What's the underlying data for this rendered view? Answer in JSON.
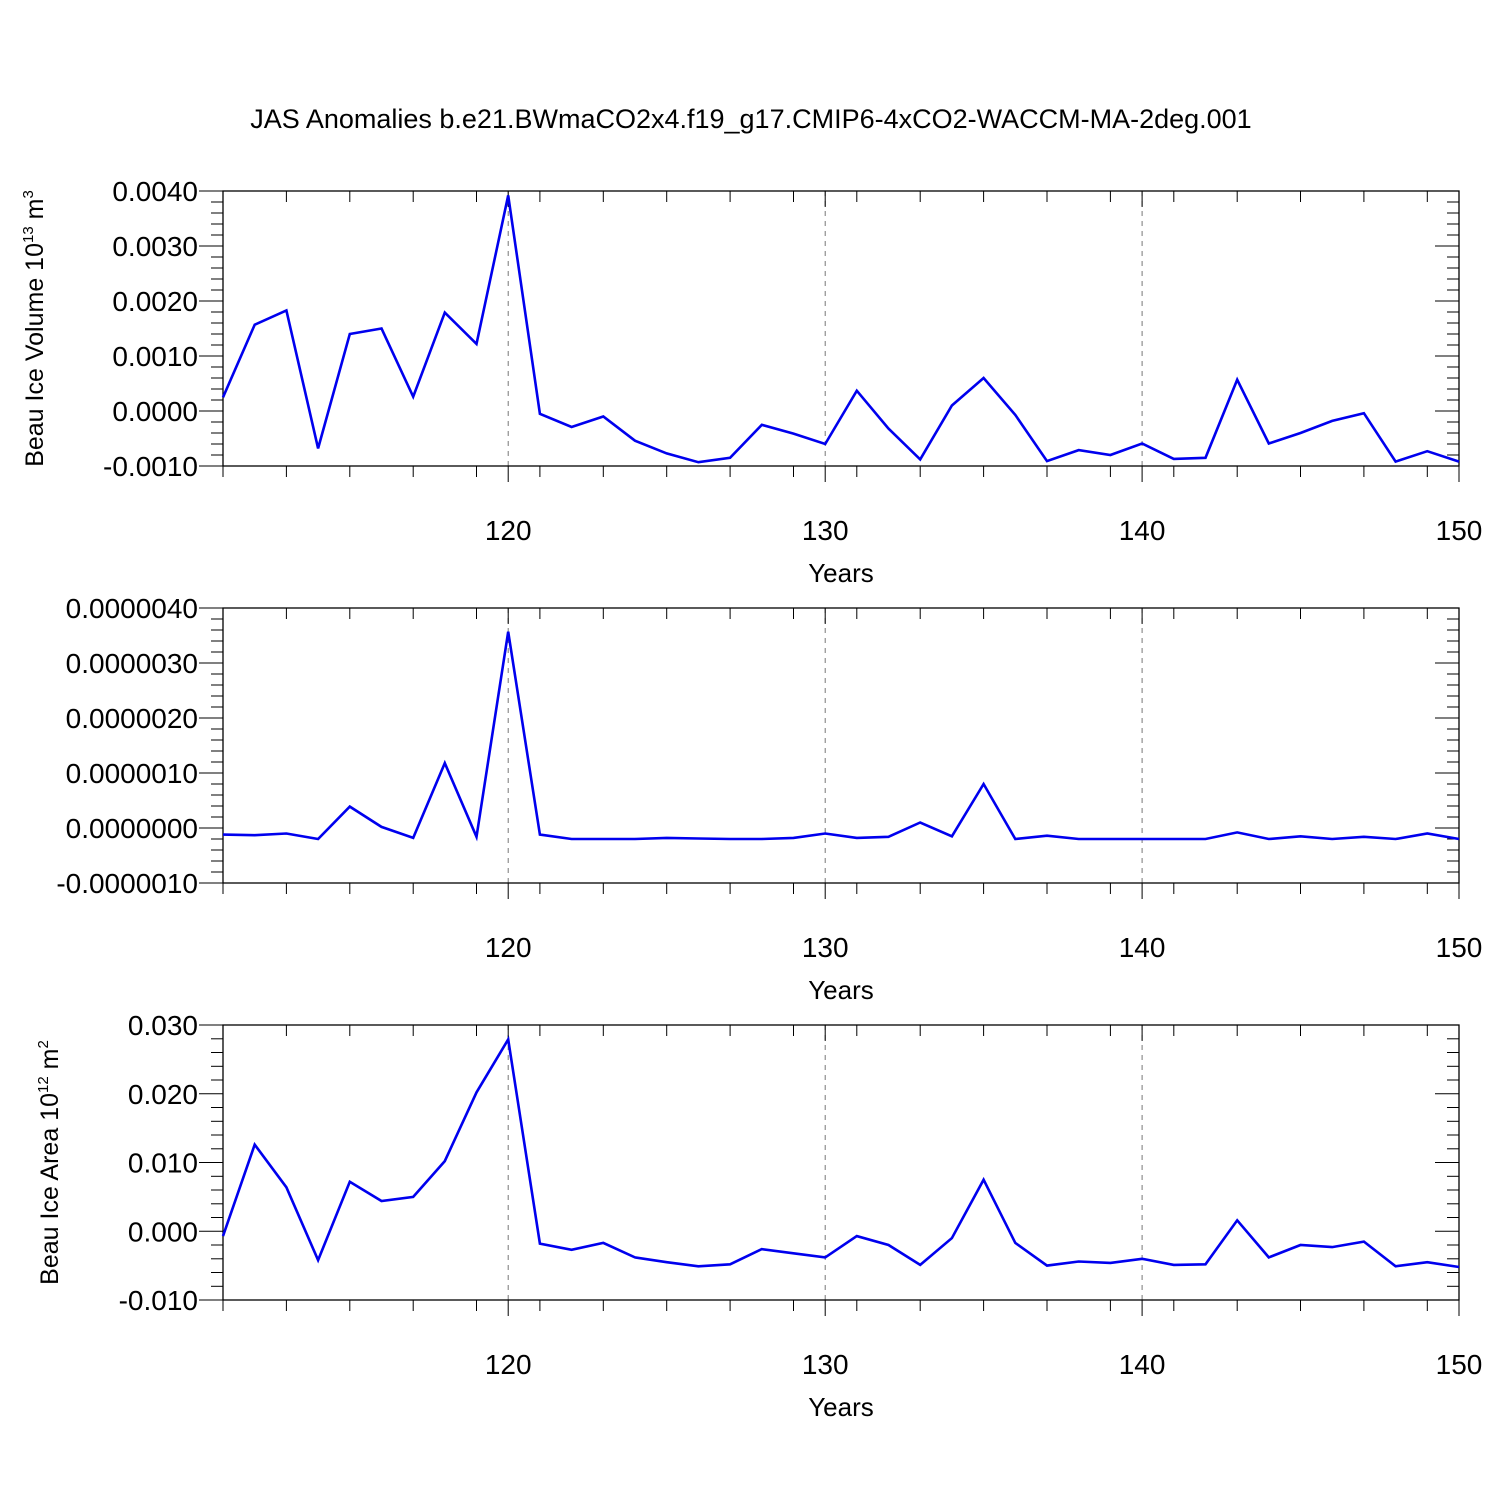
{
  "figure": {
    "title": "JAS Anomalies b.e21.BWmaCO2x4.f19_g17.CMIP6-4xCO2-WACCM-MA-2deg.001"
  },
  "chart_data": [
    {
      "type": "line",
      "ylabel": {
        "text": "Beau Ice Volume 10",
        "sup": "13",
        "unit": " m",
        "unit_sup": "3"
      },
      "xlabel": "Years",
      "xlim": [
        111,
        150
      ],
      "ylim": [
        -0.001,
        0.004
      ],
      "yticks": [
        {
          "value": -0.001,
          "label": "-0.0010"
        },
        {
          "value": 0.0,
          "label": "0.0000"
        },
        {
          "value": 0.001,
          "label": "0.0010"
        },
        {
          "value": 0.002,
          "label": "0.0020"
        },
        {
          "value": 0.003,
          "label": "0.0030"
        },
        {
          "value": 0.004,
          "label": "0.0040"
        }
      ],
      "xticks": [
        {
          "value": 120,
          "label": "120"
        },
        {
          "value": 130,
          "label": "130"
        },
        {
          "value": 140,
          "label": "140"
        },
        {
          "value": 150,
          "label": "150"
        }
      ],
      "gridlines_x": [
        120,
        130,
        140
      ],
      "line_color": "#0000ee",
      "series": [
        {
          "x": [
            111,
            112,
            113,
            114,
            115,
            116,
            117,
            118,
            119,
            120,
            121,
            122,
            123,
            124,
            125,
            126,
            127,
            128,
            129,
            130,
            131,
            132,
            133,
            134,
            135,
            136,
            137,
            138,
            139,
            140,
            141,
            142,
            143,
            144,
            145,
            146,
            147,
            148,
            149,
            150
          ],
          "values": [
            0.00025,
            0.00157,
            0.00183,
            -0.00068,
            0.0014,
            0.0015,
            0.00026,
            0.00179,
            0.00122,
            0.00392,
            -5e-05,
            -0.00029,
            -0.0001,
            -0.00054,
            -0.00077,
            -0.00093,
            -0.00085,
            -0.00025,
            -0.00041,
            -0.0006,
            0.00037,
            -0.00032,
            -0.00088,
            0.0001,
            0.0006,
            -7e-05,
            -0.00091,
            -0.00071,
            -0.0008,
            -0.00059,
            -0.00087,
            -0.00085,
            0.00057,
            -0.00059,
            -0.0004,
            -0.00018,
            -4e-05,
            -0.00092,
            -0.00073,
            -0.00092
          ]
        }
      ]
    },
    {
      "type": "line",
      "ylabel": null,
      "xlabel": "Years",
      "xlim": [
        111,
        150
      ],
      "ylim": [
        -1e-06,
        4e-06
      ],
      "yticks": [
        {
          "value": -1e-06,
          "label": "-0.0000010"
        },
        {
          "value": 0.0,
          "label": "0.0000000"
        },
        {
          "value": 1e-06,
          "label": "0.0000010"
        },
        {
          "value": 2e-06,
          "label": "0.0000020"
        },
        {
          "value": 3e-06,
          "label": "0.0000030"
        },
        {
          "value": 4e-06,
          "label": "0.0000040"
        }
      ],
      "xticks": [
        {
          "value": 120,
          "label": "120"
        },
        {
          "value": 130,
          "label": "130"
        },
        {
          "value": 140,
          "label": "140"
        },
        {
          "value": 150,
          "label": "150"
        }
      ],
      "gridlines_x": [
        120,
        130,
        140
      ],
      "line_color": "#0000ee",
      "series": [
        {
          "x": [
            111,
            112,
            113,
            114,
            115,
            116,
            117,
            118,
            119,
            120,
            121,
            122,
            123,
            124,
            125,
            126,
            127,
            128,
            129,
            130,
            131,
            132,
            133,
            134,
            135,
            136,
            137,
            138,
            139,
            140,
            141,
            142,
            143,
            144,
            145,
            146,
            147,
            148,
            149,
            150
          ],
          "values": [
            -1.2e-07,
            -1.3e-07,
            -1e-07,
            -2e-07,
            3.9e-07,
            2e-08,
            -1.8e-07,
            1.18e-06,
            -1.6e-07,
            3.57e-06,
            -1.2e-07,
            -2e-07,
            -2e-07,
            -2e-07,
            -1.8e-07,
            -1.9e-07,
            -2e-07,
            -2e-07,
            -1.8e-07,
            -1e-07,
            -1.8e-07,
            -1.6e-07,
            1e-07,
            -1.5e-07,
            8e-07,
            -2e-07,
            -1.4e-07,
            -2e-07,
            -2e-07,
            -2e-07,
            -2e-07,
            -2e-07,
            -8e-08,
            -2e-07,
            -1.5e-07,
            -2e-07,
            -1.6e-07,
            -2e-07,
            -1e-07,
            -2e-07
          ]
        }
      ]
    },
    {
      "type": "line",
      "ylabel": {
        "text": "Beau Ice Area 10",
        "sup": "12",
        "unit": " m",
        "unit_sup": "2"
      },
      "xlabel": "Years",
      "xlim": [
        111,
        150
      ],
      "ylim": [
        -0.01,
        0.03
      ],
      "yticks": [
        {
          "value": -0.01,
          "label": "-0.010"
        },
        {
          "value": 0.0,
          "label": "0.000"
        },
        {
          "value": 0.01,
          "label": "0.010"
        },
        {
          "value": 0.02,
          "label": "0.020"
        },
        {
          "value": 0.03,
          "label": "0.030"
        }
      ],
      "xticks": [
        {
          "value": 120,
          "label": "120"
        },
        {
          "value": 130,
          "label": "130"
        },
        {
          "value": 140,
          "label": "140"
        },
        {
          "value": 150,
          "label": "150"
        }
      ],
      "gridlines_x": [
        120,
        130,
        140
      ],
      "line_color": "#0000ee",
      "series": [
        {
          "x": [
            111,
            112,
            113,
            114,
            115,
            116,
            117,
            118,
            119,
            120,
            121,
            122,
            123,
            124,
            125,
            126,
            127,
            128,
            129,
            130,
            131,
            132,
            133,
            134,
            135,
            136,
            137,
            138,
            139,
            140,
            141,
            142,
            143,
            144,
            145,
            146,
            147,
            148,
            149,
            150
          ],
          "values": [
            -0.0007,
            0.0126,
            0.0064,
            -0.0042,
            0.0072,
            0.0044,
            0.005,
            0.0102,
            0.0202,
            0.0279,
            -0.0018,
            -0.0027,
            -0.0017,
            -0.0038,
            -0.0045,
            -0.0051,
            -0.0048,
            -0.0026,
            -0.0032,
            -0.0038,
            -0.0007,
            -0.002,
            -0.0049,
            -0.001,
            0.0075,
            -0.0017,
            -0.005,
            -0.0044,
            -0.0046,
            -0.004,
            -0.0049,
            -0.0048,
            0.0016,
            -0.0038,
            -0.002,
            -0.0023,
            -0.0015,
            -0.0051,
            -0.0045,
            -0.0052
          ]
        }
      ]
    }
  ]
}
